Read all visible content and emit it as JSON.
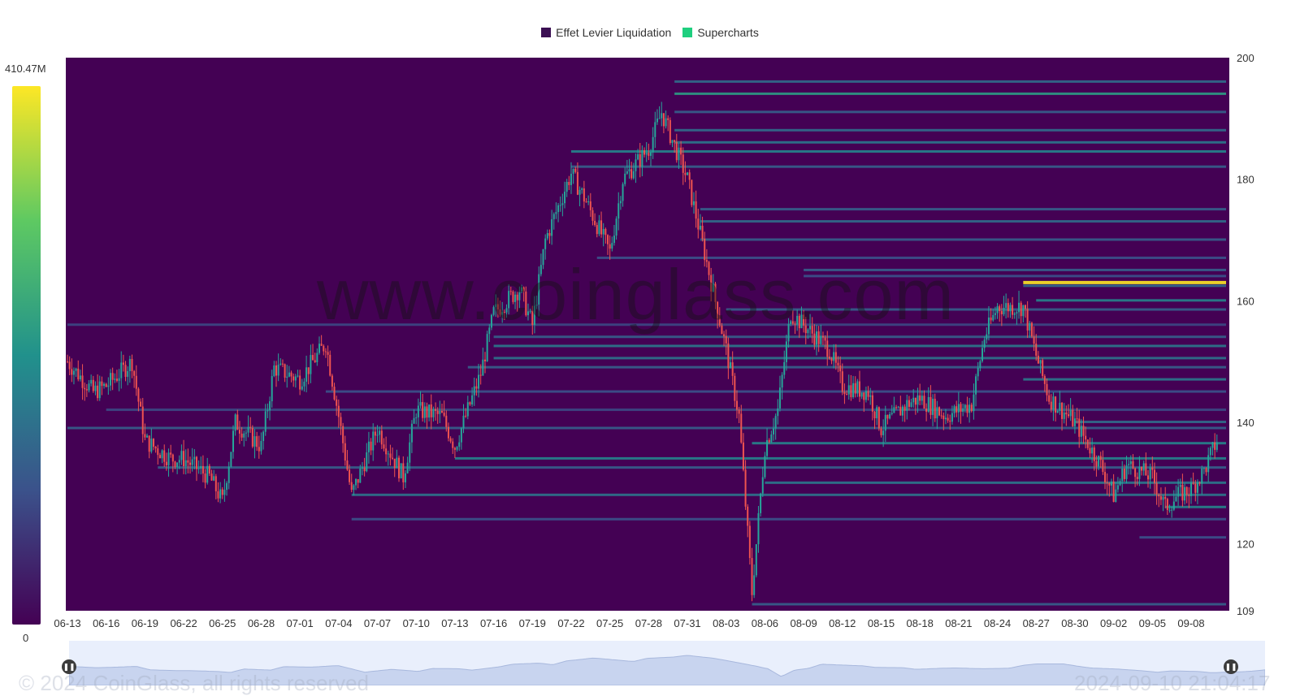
{
  "legend": [
    {
      "label": "Effet Levier Liquidation",
      "color": "#3b0f53"
    },
    {
      "label": "Supercharts",
      "color": "#1fcf7f"
    }
  ],
  "colorbar": {
    "max_label": "410.47M",
    "min_label": "0",
    "colors": [
      "#440154",
      "#3b528b",
      "#21918c",
      "#5ec962",
      "#fde725"
    ]
  },
  "watermark": "www.coinglass.com",
  "footer": {
    "copyright": "© 2024 CoinGlass, all rights reserved",
    "timestamp": "2024-09-10 21:04:17"
  },
  "navigator": {
    "handle_icon": "pause-icon"
  },
  "chart_data": {
    "type": "heatmap",
    "title": "",
    "xlabel": "",
    "ylabel": "",
    "x_ticks": [
      "06-13",
      "06-16",
      "06-19",
      "06-22",
      "06-25",
      "06-28",
      "07-01",
      "07-04",
      "07-07",
      "07-10",
      "07-13",
      "07-16",
      "07-19",
      "07-22",
      "07-25",
      "07-28",
      "07-31",
      "08-03",
      "08-06",
      "08-09",
      "08-12",
      "08-15",
      "08-18",
      "08-21",
      "08-24",
      "08-27",
      "08-30",
      "09-02",
      "09-05",
      "09-08"
    ],
    "y_ticks": [
      "200",
      "180",
      "160",
      "140",
      "120",
      "109"
    ],
    "ylim": [
      109,
      200
    ],
    "background_color": "#440154",
    "up_color": "#26a69a",
    "down_color": "#ef5350",
    "price_series": [
      {
        "date": "06-13",
        "price": 150
      },
      {
        "date": "06-15",
        "price": 145
      },
      {
        "date": "06-16",
        "price": 146
      },
      {
        "date": "06-18",
        "price": 150
      },
      {
        "date": "06-19",
        "price": 137
      },
      {
        "date": "06-21",
        "price": 134
      },
      {
        "date": "06-22",
        "price": 134
      },
      {
        "date": "06-24",
        "price": 131
      },
      {
        "date": "06-25",
        "price": 127
      },
      {
        "date": "06-26",
        "price": 140
      },
      {
        "date": "06-28",
        "price": 136
      },
      {
        "date": "06-29",
        "price": 149
      },
      {
        "date": "07-01",
        "price": 147
      },
      {
        "date": "07-03",
        "price": 153
      },
      {
        "date": "07-04",
        "price": 141
      },
      {
        "date": "07-05",
        "price": 128
      },
      {
        "date": "07-07",
        "price": 139
      },
      {
        "date": "07-09",
        "price": 131
      },
      {
        "date": "07-10",
        "price": 142
      },
      {
        "date": "07-12",
        "price": 141
      },
      {
        "date": "07-13",
        "price": 136
      },
      {
        "date": "07-15",
        "price": 148
      },
      {
        "date": "07-16",
        "price": 158
      },
      {
        "date": "07-18",
        "price": 162
      },
      {
        "date": "07-19",
        "price": 156
      },
      {
        "date": "07-20",
        "price": 170
      },
      {
        "date": "07-22",
        "price": 181
      },
      {
        "date": "07-23",
        "price": 177
      },
      {
        "date": "07-25",
        "price": 168
      },
      {
        "date": "07-26",
        "price": 180
      },
      {
        "date": "07-28",
        "price": 185
      },
      {
        "date": "07-29",
        "price": 191
      },
      {
        "date": "07-31",
        "price": 180
      },
      {
        "date": "08-01",
        "price": 171
      },
      {
        "date": "08-03",
        "price": 152
      },
      {
        "date": "08-04",
        "price": 141
      },
      {
        "date": "08-05",
        "price": 112
      },
      {
        "date": "08-06",
        "price": 136
      },
      {
        "date": "08-07",
        "price": 142
      },
      {
        "date": "08-08",
        "price": 158
      },
      {
        "date": "08-09",
        "price": 156
      },
      {
        "date": "08-11",
        "price": 152
      },
      {
        "date": "08-12",
        "price": 146
      },
      {
        "date": "08-14",
        "price": 145
      },
      {
        "date": "08-15",
        "price": 139
      },
      {
        "date": "08-17",
        "price": 143
      },
      {
        "date": "08-18",
        "price": 144
      },
      {
        "date": "08-20",
        "price": 141
      },
      {
        "date": "08-22",
        "price": 143
      },
      {
        "date": "08-23",
        "price": 154
      },
      {
        "date": "08-24",
        "price": 159
      },
      {
        "date": "08-26",
        "price": 159
      },
      {
        "date": "08-27",
        "price": 151
      },
      {
        "date": "08-28",
        "price": 144
      },
      {
        "date": "08-30",
        "price": 140
      },
      {
        "date": "09-01",
        "price": 133
      },
      {
        "date": "09-02",
        "price": 128
      },
      {
        "date": "09-03",
        "price": 133
      },
      {
        "date": "09-05",
        "price": 131
      },
      {
        "date": "09-06",
        "price": 126
      },
      {
        "date": "09-07",
        "price": 128
      },
      {
        "date": "09-08",
        "price": 129
      },
      {
        "date": "09-09",
        "price": 132
      },
      {
        "date": "09-10",
        "price": 137
      }
    ],
    "liquidation_levels": [
      {
        "price": 196,
        "from": "07-30",
        "intensity": 0.35
      },
      {
        "price": 194,
        "from": "07-30",
        "intensity": 0.55
      },
      {
        "price": 191,
        "from": "07-30",
        "intensity": 0.3
      },
      {
        "price": 188,
        "from": "07-30",
        "intensity": 0.35
      },
      {
        "price": 186,
        "from": "07-30",
        "intensity": 0.4
      },
      {
        "price": 184.5,
        "from": "07-22",
        "intensity": 0.45
      },
      {
        "price": 182,
        "from": "07-22",
        "intensity": 0.3
      },
      {
        "price": 175,
        "from": "08-01",
        "intensity": 0.3
      },
      {
        "price": 173,
        "from": "08-01",
        "intensity": 0.35
      },
      {
        "price": 170,
        "from": "08-01",
        "intensity": 0.3
      },
      {
        "price": 167,
        "from": "07-24",
        "intensity": 0.25
      },
      {
        "price": 165,
        "from": "08-09",
        "intensity": 0.3
      },
      {
        "price": 164,
        "from": "08-09",
        "intensity": 0.25
      },
      {
        "price": 163,
        "from": "08-26",
        "intensity": 1.0
      },
      {
        "price": 162.4,
        "from": "08-26",
        "intensity": 0.35
      },
      {
        "price": 160,
        "from": "08-27",
        "intensity": 0.45
      },
      {
        "price": 158.5,
        "from": "08-03",
        "intensity": 0.3
      },
      {
        "price": 156,
        "from": "06-13",
        "intensity": 0.22
      },
      {
        "price": 154,
        "from": "07-16",
        "intensity": 0.3
      },
      {
        "price": 152.5,
        "from": "07-16",
        "intensity": 0.4
      },
      {
        "price": 150.5,
        "from": "07-16",
        "intensity": 0.38
      },
      {
        "price": 149,
        "from": "07-14",
        "intensity": 0.3
      },
      {
        "price": 147,
        "from": "08-26",
        "intensity": 0.4
      },
      {
        "price": 145,
        "from": "07-03",
        "intensity": 0.25
      },
      {
        "price": 142,
        "from": "06-16",
        "intensity": 0.22
      },
      {
        "price": 140,
        "from": "08-30",
        "intensity": 0.35
      },
      {
        "price": 139,
        "from": "06-13",
        "intensity": 0.3
      },
      {
        "price": 136.5,
        "from": "08-05",
        "intensity": 0.45
      },
      {
        "price": 134,
        "from": "07-13",
        "intensity": 0.45
      },
      {
        "price": 132.5,
        "from": "06-20",
        "intensity": 0.3
      },
      {
        "price": 130,
        "from": "08-06",
        "intensity": 0.4
      },
      {
        "price": 128,
        "from": "07-05",
        "intensity": 0.38
      },
      {
        "price": 126,
        "from": "09-06",
        "intensity": 0.45
      },
      {
        "price": 124,
        "from": "07-05",
        "intensity": 0.25
      },
      {
        "price": 121,
        "from": "09-04",
        "intensity": 0.25
      },
      {
        "price": 110,
        "from": "08-05",
        "intensity": 0.3
      }
    ]
  }
}
